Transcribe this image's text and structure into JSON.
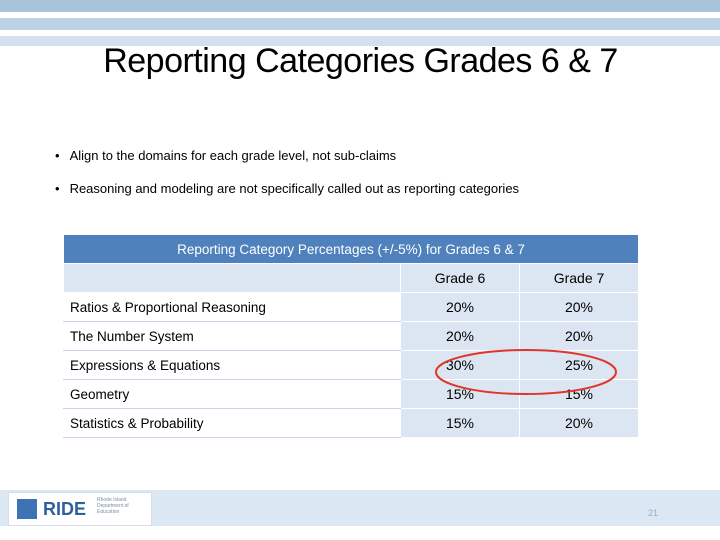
{
  "header": {
    "title": "Reporting Categories Grades 6 & 7"
  },
  "bullets": [
    "Align to the domains for each grade level, not sub-claims",
    "Reasoning and modeling are not specifically called out as reporting categories"
  ],
  "table": {
    "caption": "Reporting Category Percentages (+/-5%) for Grades 6 & 7",
    "columns": [
      "Grade 6",
      "Grade 7"
    ],
    "rows": [
      [
        "Ratios & Proportional Reasoning",
        "20%",
        "20%"
      ],
      [
        "The Number System",
        "20%",
        "20%"
      ],
      [
        "Expressions & Equations",
        "30%",
        "25%"
      ],
      [
        "Geometry",
        "15%",
        "15%"
      ],
      [
        "Statistics & Probability",
        "15%",
        "20%"
      ]
    ]
  },
  "footer": {
    "logo": "RIDE",
    "logo_caption": "Rhode Island Department of Education",
    "page_number": "21"
  }
}
